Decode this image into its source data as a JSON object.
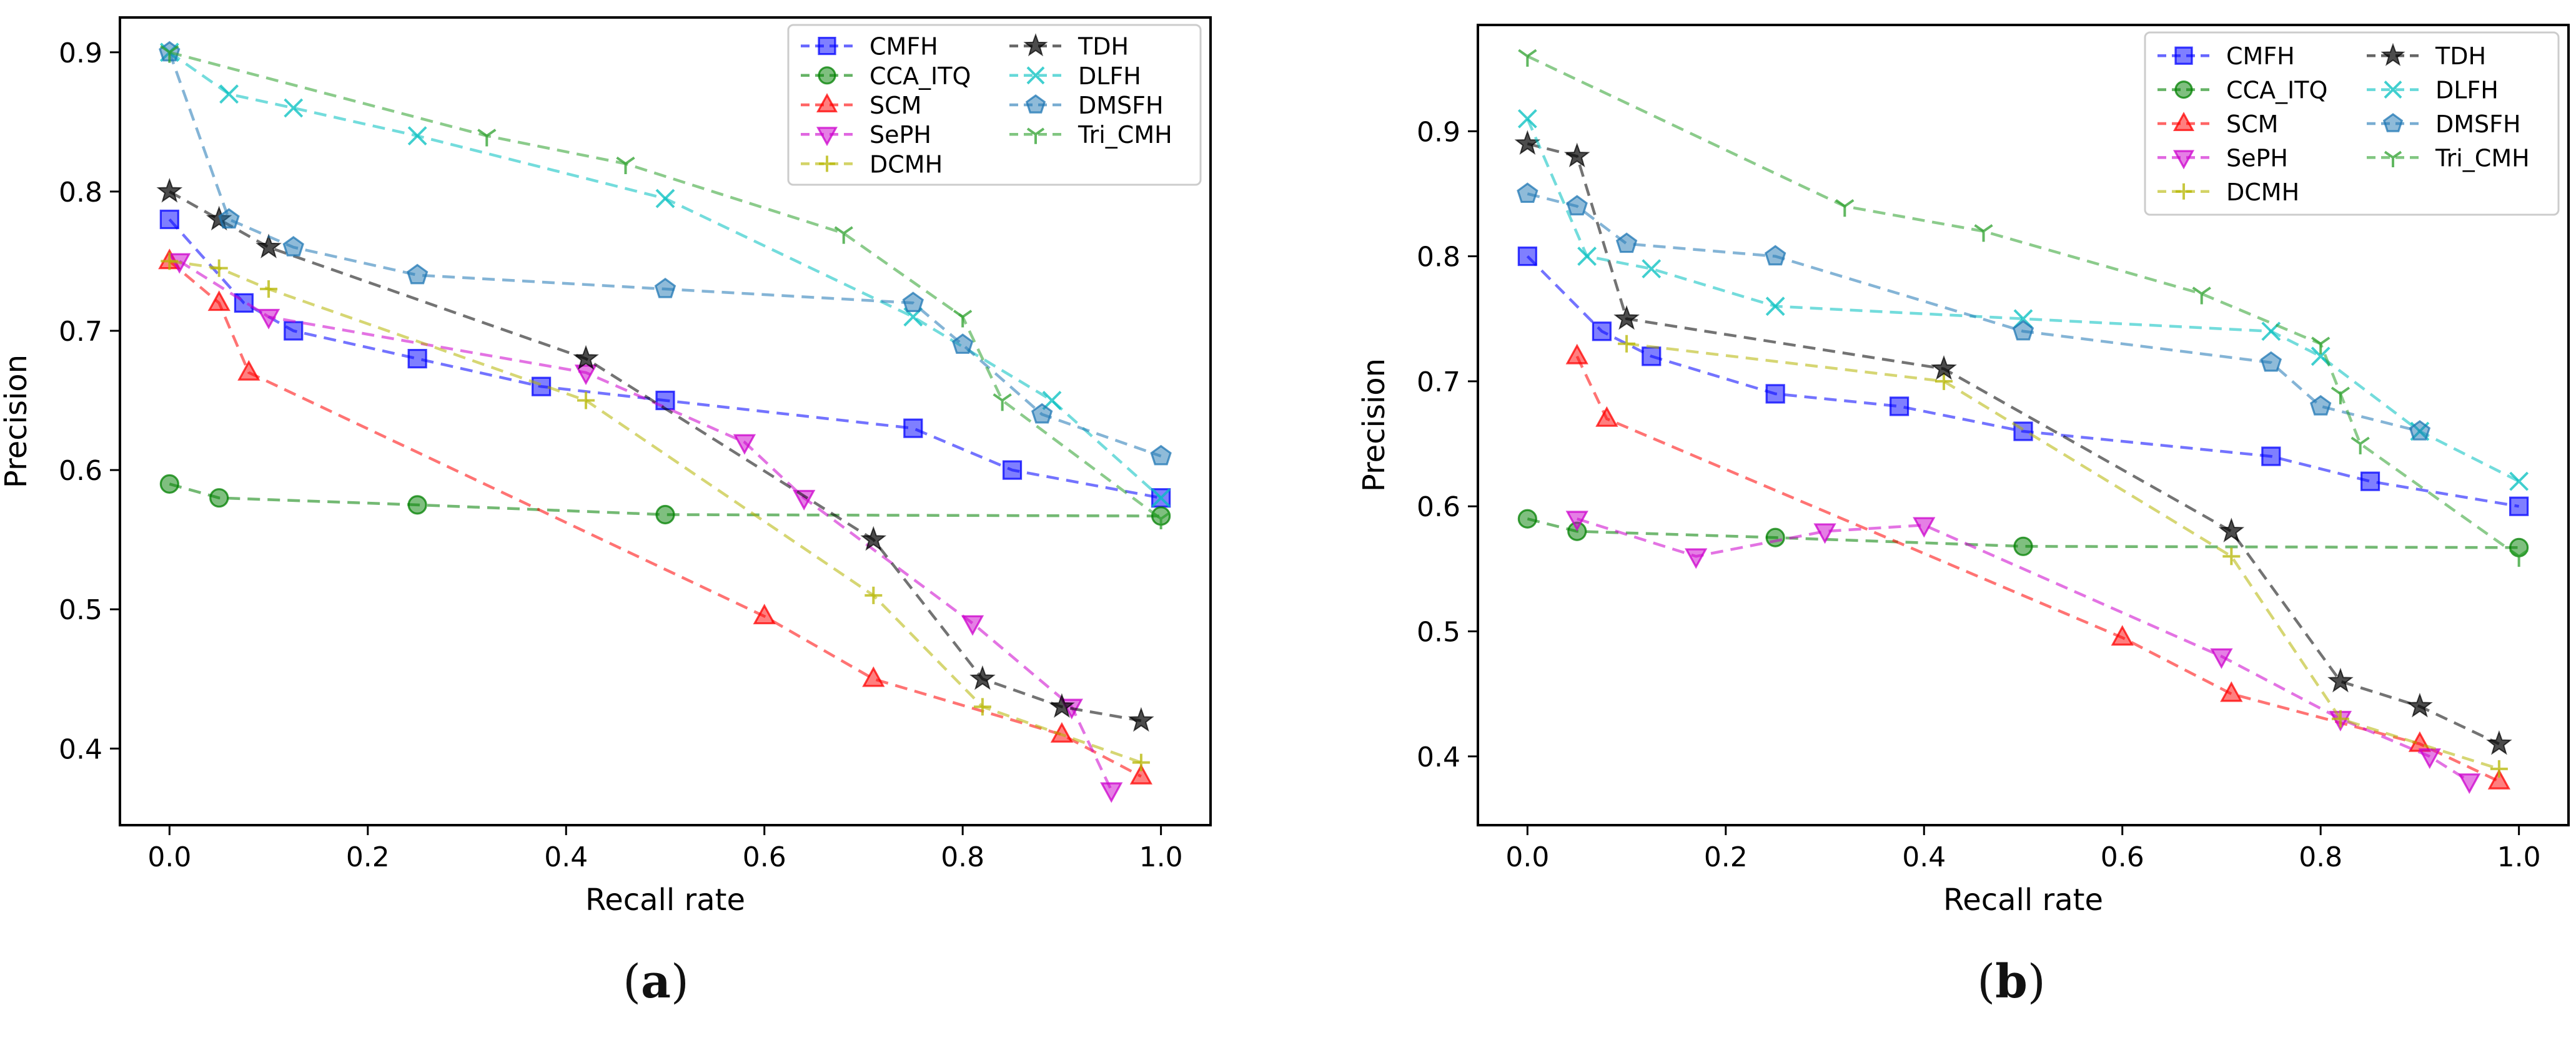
{
  "figure": {
    "subfigure_labels": [
      "a",
      "b"
    ]
  },
  "chart_data": [
    {
      "type": "line",
      "title": "",
      "xlabel": "Recall rate",
      "ylabel": "Precision",
      "xlim": [
        -0.05,
        1.05
      ],
      "ylim": [
        0.345,
        0.925
      ],
      "xticks": [
        "0.0",
        "0.2",
        "0.4",
        "0.6",
        "0.8",
        "1.0"
      ],
      "xtick_values": [
        0,
        0.2,
        0.4,
        0.6,
        0.8,
        1.0
      ],
      "yticks": [
        "0.4",
        "0.5",
        "0.6",
        "0.7",
        "0.8",
        "0.9"
      ],
      "ytick_values": [
        0.4,
        0.5,
        0.6,
        0.7,
        0.8,
        0.9
      ],
      "legend_position": "top-right",
      "legend_columns": 2,
      "series": [
        {
          "name": "CMFH",
          "color": "#0000ff",
          "marker": "square",
          "x": [
            0,
            0.075,
            0.125,
            0.25,
            0.375,
            0.5,
            0.75,
            0.85,
            1.0
          ],
          "y": [
            0.78,
            0.72,
            0.7,
            0.68,
            0.66,
            0.65,
            0.63,
            0.6,
            0.58
          ]
        },
        {
          "name": "CCA_ITQ",
          "color": "#008000",
          "marker": "circle",
          "x": [
            0,
            0.05,
            0.25,
            0.5,
            1.0
          ],
          "y": [
            0.59,
            0.58,
            0.575,
            0.568,
            0.567
          ]
        },
        {
          "name": "SCM",
          "color": "#ff0000",
          "marker": "triangle-up",
          "x": [
            0,
            0.05,
            0.08,
            0.6,
            0.71,
            0.9,
            0.98
          ],
          "y": [
            0.75,
            0.72,
            0.67,
            0.495,
            0.45,
            0.41,
            0.38
          ]
        },
        {
          "name": "SePH",
          "color": "#cc00cc",
          "marker": "triangle-down",
          "x": [
            0.01,
            0.1,
            0.42,
            0.58,
            0.64,
            0.81,
            0.91,
            0.95
          ],
          "y": [
            0.75,
            0.71,
            0.67,
            0.62,
            0.58,
            0.49,
            0.43,
            0.37
          ]
        },
        {
          "name": "DCMH",
          "color": "#b5b500",
          "marker": "plus",
          "x": [
            0,
            0.05,
            0.1,
            0.42,
            0.71,
            0.82,
            0.98
          ],
          "y": [
            0.75,
            0.745,
            0.73,
            0.65,
            0.51,
            0.43,
            0.39
          ]
        },
        {
          "name": "TDH",
          "color": "#000000",
          "marker": "star",
          "x": [
            0,
            0.05,
            0.1,
            0.42,
            0.71,
            0.82,
            0.9,
            0.98
          ],
          "y": [
            0.8,
            0.78,
            0.76,
            0.68,
            0.55,
            0.45,
            0.43,
            0.42
          ]
        },
        {
          "name": "DLFH",
          "color": "#00bfbf",
          "marker": "x",
          "x": [
            0,
            0.06,
            0.125,
            0.25,
            0.5,
            0.75,
            0.89,
            1.0
          ],
          "y": [
            0.9,
            0.87,
            0.86,
            0.84,
            0.795,
            0.71,
            0.65,
            0.58
          ]
        },
        {
          "name": "DMSFH",
          "color": "#1f77b4",
          "marker": "pentagon",
          "x": [
            0,
            0.06,
            0.125,
            0.25,
            0.5,
            0.75,
            0.8,
            0.88,
            1.0
          ],
          "y": [
            0.9,
            0.78,
            0.76,
            0.74,
            0.73,
            0.72,
            0.69,
            0.64,
            0.61
          ]
        },
        {
          "name": "Tri_CMH",
          "color": "#2ca02c",
          "marker": "tri-down",
          "x": [
            0,
            0.32,
            0.46,
            0.68,
            0.8,
            0.84,
            1.0
          ],
          "y": [
            0.9,
            0.84,
            0.82,
            0.77,
            0.71,
            0.65,
            0.565
          ]
        }
      ]
    },
    {
      "type": "line",
      "title": "",
      "xlabel": "Recall rate",
      "ylabel": "Precision",
      "xlim": [
        -0.05,
        1.05
      ],
      "ylim": [
        0.345,
        0.985
      ],
      "xticks": [
        "0.0",
        "0.2",
        "0.4",
        "0.6",
        "0.8",
        "1.0"
      ],
      "xtick_values": [
        0,
        0.2,
        0.4,
        0.6,
        0.8,
        1.0
      ],
      "yticks": [
        "0.4",
        "0.5",
        "0.6",
        "0.7",
        "0.8",
        "0.9"
      ],
      "ytick_values": [
        0.4,
        0.5,
        0.6,
        0.7,
        0.8,
        0.9
      ],
      "legend_position": "top-right",
      "legend_columns": 2,
      "series": [
        {
          "name": "CMFH",
          "color": "#0000ff",
          "marker": "square",
          "x": [
            0,
            0.075,
            0.125,
            0.25,
            0.375,
            0.5,
            0.75,
            0.85,
            1.0
          ],
          "y": [
            0.8,
            0.74,
            0.72,
            0.69,
            0.68,
            0.66,
            0.64,
            0.62,
            0.6
          ]
        },
        {
          "name": "CCA_ITQ",
          "color": "#008000",
          "marker": "circle",
          "x": [
            0,
            0.05,
            0.25,
            0.5,
            1.0
          ],
          "y": [
            0.59,
            0.58,
            0.575,
            0.568,
            0.567
          ]
        },
        {
          "name": "SCM",
          "color": "#ff0000",
          "marker": "triangle-up",
          "x": [
            0.05,
            0.08,
            0.6,
            0.71,
            0.9,
            0.98
          ],
          "y": [
            0.72,
            0.67,
            0.495,
            0.45,
            0.41,
            0.38
          ]
        },
        {
          "name": "SePH",
          "color": "#cc00cc",
          "marker": "triangle-down",
          "x": [
            0.05,
            0.17,
            0.3,
            0.4,
            0.7,
            0.82,
            0.91,
            0.95
          ],
          "y": [
            0.59,
            0.56,
            0.58,
            0.585,
            0.48,
            0.43,
            0.4,
            0.38
          ]
        },
        {
          "name": "DCMH",
          "color": "#b5b500",
          "marker": "plus",
          "x": [
            0.1,
            0.42,
            0.71,
            0.82,
            0.98
          ],
          "y": [
            0.73,
            0.7,
            0.56,
            0.43,
            0.39
          ]
        },
        {
          "name": "TDH",
          "color": "#000000",
          "marker": "star",
          "x": [
            0,
            0.05,
            0.1,
            0.42,
            0.71,
            0.82,
            0.9,
            0.98
          ],
          "y": [
            0.89,
            0.88,
            0.75,
            0.71,
            0.58,
            0.46,
            0.44,
            0.41
          ]
        },
        {
          "name": "DLFH",
          "color": "#00bfbf",
          "marker": "x",
          "x": [
            0,
            0.06,
            0.125,
            0.25,
            0.5,
            0.75,
            0.8,
            0.9,
            1.0
          ],
          "y": [
            0.91,
            0.8,
            0.79,
            0.76,
            0.75,
            0.74,
            0.72,
            0.66,
            0.62
          ]
        },
        {
          "name": "DMSFH",
          "color": "#1f77b4",
          "marker": "pentagon",
          "x": [
            0,
            0.05,
            0.1,
            0.25,
            0.5,
            0.75,
            0.8,
            0.9
          ],
          "y": [
            0.85,
            0.84,
            0.81,
            0.8,
            0.74,
            0.715,
            0.68,
            0.66
          ]
        },
        {
          "name": "Tri_CMH",
          "color": "#2ca02c",
          "marker": "tri-down",
          "x": [
            0,
            0.32,
            0.46,
            0.68,
            0.8,
            0.82,
            0.84,
            1.0
          ],
          "y": [
            0.96,
            0.84,
            0.82,
            0.77,
            0.73,
            0.69,
            0.65,
            0.56
          ]
        }
      ]
    }
  ]
}
